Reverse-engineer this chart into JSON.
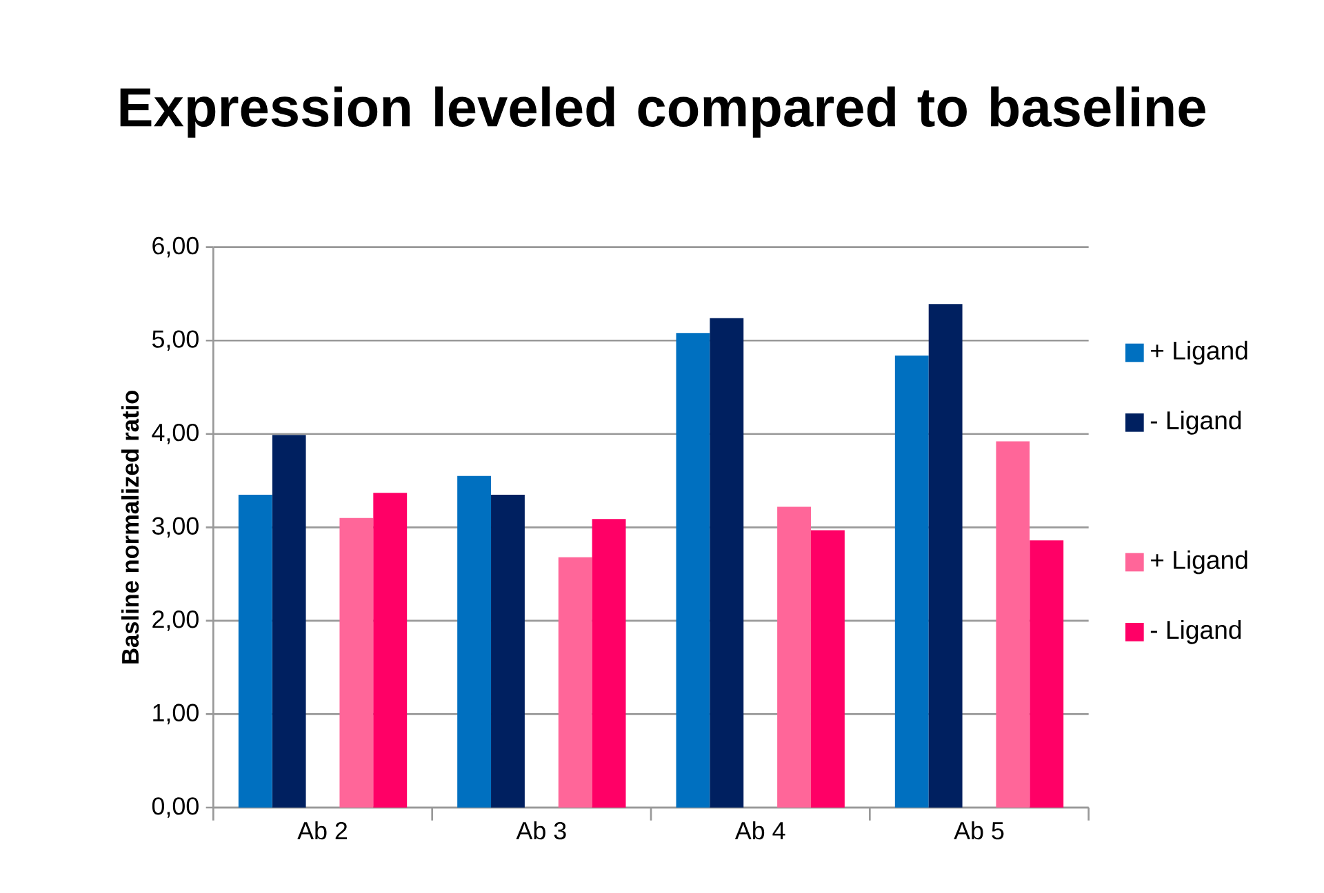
{
  "chart_data": {
    "type": "bar",
    "title": "Expression leveled compared to baseline",
    "ylabel": "Basline normalized ratio",
    "categories": [
      "Ab 2",
      "Ab 3",
      "Ab 4",
      "Ab 5"
    ],
    "series": [
      {
        "name": "+ Ligand",
        "color": "#0070c0",
        "values": [
          3.35,
          3.55,
          5.08,
          4.84
        ]
      },
      {
        "name": "- Ligand",
        "color": "#002060",
        "values": [
          3.99,
          3.35,
          5.24,
          5.39
        ]
      },
      {
        "name": "+ Ligand",
        "color": "#ff6699",
        "values": [
          3.1,
          2.68,
          3.22,
          3.92
        ]
      },
      {
        "name": "- Ligand",
        "color": "#ff0066",
        "values": [
          3.37,
          3.09,
          2.97,
          2.86
        ]
      }
    ],
    "ylim": [
      0,
      6
    ],
    "yticks": [
      {
        "value": 0,
        "label": "0,00"
      },
      {
        "value": 1,
        "label": "1,00"
      },
      {
        "value": 2,
        "label": "2,00"
      },
      {
        "value": 3,
        "label": "3,00"
      },
      {
        "value": 4,
        "label": "4,00"
      },
      {
        "value": 5,
        "label": "5,00"
      },
      {
        "value": 6,
        "label": "6,00"
      }
    ],
    "grid": "y",
    "legend": "right"
  }
}
